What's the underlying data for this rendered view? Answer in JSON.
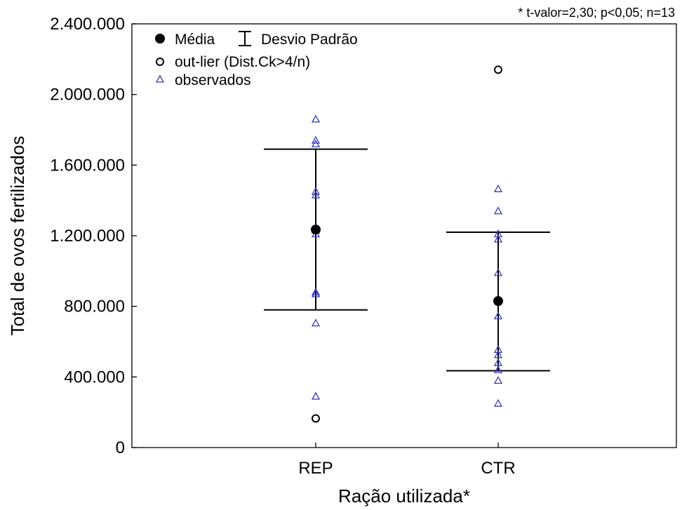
{
  "chart_data": {
    "type": "scatter",
    "title": "",
    "annotation": "* t-valor=2,30; p<0,05; n=13",
    "xlabel": "Ração utilizada*",
    "ylabel": "Total de ovos fertilizados",
    "categories": [
      "REP",
      "CTR"
    ],
    "ylim": [
      0,
      2400000
    ],
    "yticks": [
      0,
      400000,
      800000,
      1200000,
      1600000,
      2000000,
      2400000
    ],
    "ytick_labels": [
      "0",
      "400.000",
      "800.000",
      "1.200.000",
      "1.600.000",
      "2.000.000",
      "2.400.000"
    ],
    "legend": {
      "position": "top-left",
      "entries": [
        {
          "label": "Média",
          "marker": "filled-circle"
        },
        {
          "label": "Desvio Padrão",
          "marker": "error-bar"
        },
        {
          "label": "out-lier (Dist.Ck>4/n)",
          "marker": "open-circle"
        },
        {
          "label": "observados",
          "marker": "open-triangle"
        }
      ]
    },
    "groups": [
      {
        "category": "REP",
        "mean": 1235000,
        "sd_lower": 780000,
        "sd_upper": 1690000,
        "outliers": [
          165000
        ],
        "observed": [
          1860000,
          1740000,
          1720000,
          1450000,
          1430000,
          1230000,
          1210000,
          880000,
          870000,
          705000,
          290000
        ]
      },
      {
        "category": "CTR",
        "mean": 830000,
        "sd_lower": 435000,
        "sd_upper": 1220000,
        "outliers": [
          2140000
        ],
        "observed": [
          1465000,
          1340000,
          1210000,
          1180000,
          990000,
          745000,
          555000,
          525000,
          480000,
          440000,
          380000,
          250000
        ]
      }
    ],
    "colors": {
      "mean": "#000000",
      "error_bar": "#000000",
      "outlier": "#000000",
      "observed": "#3a3ab8"
    }
  }
}
